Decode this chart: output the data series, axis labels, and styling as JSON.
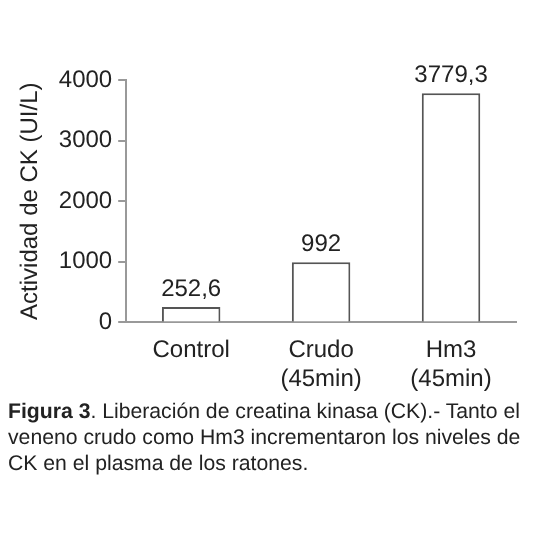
{
  "chart_data": {
    "type": "bar",
    "ylabel": "Actividad de CK (UI/L)",
    "categories": [
      "Control",
      "Crudo (45min)",
      "Hm3 (45min)"
    ],
    "values": [
      252.6,
      992,
      3779.3
    ],
    "value_labels": [
      "252,6",
      "992",
      "3779,3"
    ],
    "color": "#ffffff",
    "ylim": [
      0,
      4000
    ],
    "yticks": [
      0,
      1000,
      2000,
      3000,
      4000
    ],
    "grid": false,
    "legend": false,
    "annotations": [
      "Figura 3. Liberación de creatina kinasa (CK).- Tanto el veneno crudo como Hm3 incrementaron los niveles de CK en el plasma de los ratones."
    ]
  }
}
